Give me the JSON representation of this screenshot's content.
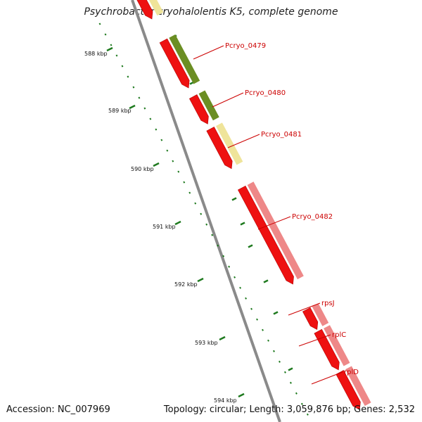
{
  "title": "Psychrobacter cryohalolentis K5, complete genome",
  "footer": {
    "accession": "Accession: NC_007969",
    "summary": "Topology: circular; Length: 3,059,876 bp; Genes: 2,532"
  },
  "colors": {
    "backbone": "#8a8a8a",
    "tick": "#1f7a1f",
    "label": "#cc0000",
    "cds": "#ee1111",
    "olive": "#6b8e23",
    "pale_yellow": "#efe49a",
    "pink": "#ee8888"
  },
  "scale_ticks": [
    {
      "label": "588 kbp"
    },
    {
      "label": "589 kbp"
    },
    {
      "label": "590 kbp"
    },
    {
      "label": "591 kbp"
    },
    {
      "label": "592 kbp"
    },
    {
      "label": "593 kbp"
    },
    {
      "label": "594 kbp"
    }
  ],
  "gene_labels": [
    {
      "name": "Pcryo_0479"
    },
    {
      "name": "Pcryo_0480"
    },
    {
      "name": "Pcryo_0481"
    },
    {
      "name": "Pcryo_0482"
    },
    {
      "name": "rpsJ"
    },
    {
      "name": "rplC"
    },
    {
      "name": "rplD"
    }
  ]
}
